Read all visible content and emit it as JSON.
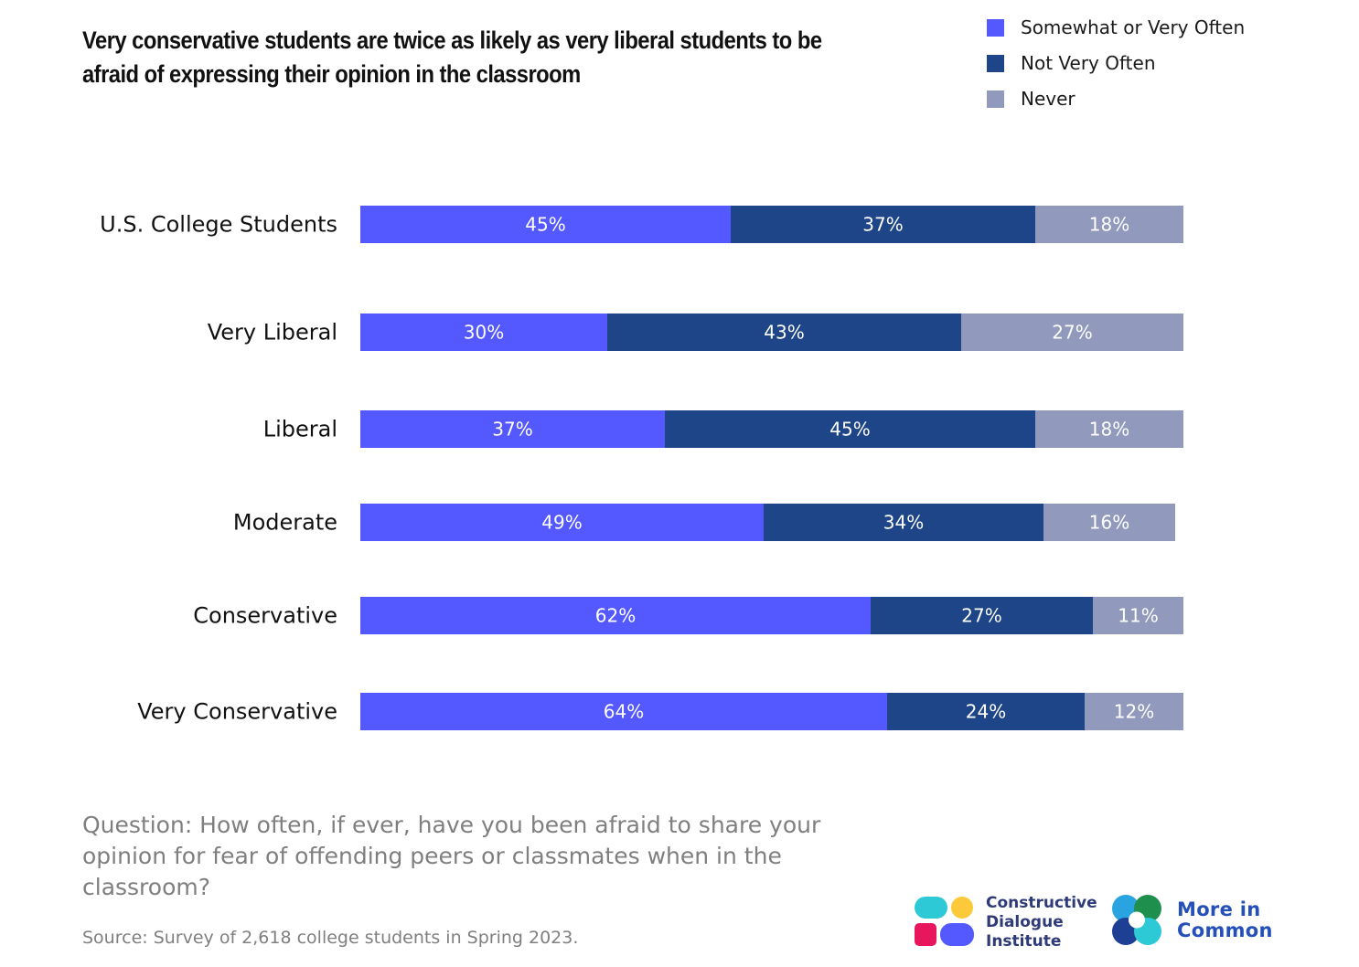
{
  "title": "Very conservative students are twice as likely as very liberal students to be afraid of expressing their opinion in the classroom",
  "question": "Question: How often, if ever, have you been afraid to share your opinion for fear of offending peers or classmates when in the classroom?",
  "source": "Source: Survey of 2,618 college students in Spring 2023.",
  "logos": {
    "cdi": [
      "Constructive",
      "Dialogue",
      "Institute"
    ],
    "mic": [
      "More in",
      "Common"
    ]
  },
  "colors": {
    "somewhat": "#5458ff",
    "not_very": "#1e4587",
    "never": "#9199bd"
  },
  "chart_data": {
    "type": "bar",
    "orientation": "horizontal",
    "stacked": true,
    "title": "Very conservative students are twice as likely as very liberal students to be afraid of expressing their opinion in the classroom",
    "xlabel": "",
    "ylabel": "",
    "xlim": [
      0,
      100
    ],
    "grid": false,
    "legend_position": "top-right",
    "categories": [
      "U.S. College Students",
      "Very Liberal",
      "Liberal",
      "Moderate",
      "Conservative",
      "Very Conservative"
    ],
    "series": [
      {
        "name": "Somewhat or Very Often",
        "color": "#5458ff",
        "values": [
          45,
          30,
          37,
          49,
          62,
          64
        ]
      },
      {
        "name": "Not Very Often",
        "color": "#1e4587",
        "values": [
          37,
          43,
          45,
          34,
          27,
          24
        ]
      },
      {
        "name": "Never",
        "color": "#9199bd",
        "values": [
          18,
          27,
          18,
          16,
          11,
          12
        ]
      }
    ],
    "data_labels": [
      [
        "45%",
        "37%",
        "18%"
      ],
      [
        "30%",
        "43%",
        "27%"
      ],
      [
        "37%",
        "45%",
        "18%"
      ],
      [
        "49%",
        "34%",
        "16%"
      ],
      [
        "62%",
        "27%",
        "11%"
      ],
      [
        "64%",
        "24%",
        "12%"
      ]
    ]
  }
}
